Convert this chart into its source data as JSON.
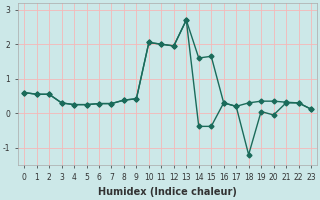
{
  "xlabel": "Humidex (Indice chaleur)",
  "background_color": "#cce8e8",
  "grid_color": "#f5b8b8",
  "line_color": "#1a6b5a",
  "x_line1": [
    0,
    1,
    2,
    3,
    4,
    5,
    6,
    7,
    8,
    9,
    10,
    11,
    12,
    13,
    14,
    15,
    16,
    17,
    18,
    19,
    20,
    21,
    22,
    23
  ],
  "y_line1": [
    0.6,
    0.55,
    0.55,
    0.3,
    0.25,
    0.25,
    0.28,
    0.28,
    0.38,
    0.42,
    2.05,
    2.0,
    1.95,
    2.7,
    1.6,
    1.65,
    0.3,
    0.2,
    0.3,
    0.35,
    0.35,
    0.32,
    0.3,
    0.12
  ],
  "x_line2": [
    0,
    1,
    2,
    3,
    4,
    5,
    6,
    7,
    8,
    9,
    10,
    11,
    12,
    13,
    14,
    15,
    16,
    17,
    18,
    19,
    20,
    21,
    22,
    23
  ],
  "y_line2": [
    0.6,
    0.55,
    0.55,
    0.3,
    0.25,
    0.25,
    0.28,
    0.28,
    0.38,
    0.42,
    2.05,
    2.0,
    1.95,
    2.7,
    -0.38,
    -0.38,
    0.3,
    0.2,
    -1.2,
    0.05,
    -0.05,
    0.3,
    0.3,
    0.12
  ],
  "ylim": [
    -1.5,
    3.2
  ],
  "xlim": [
    -0.5,
    23.5
  ],
  "yticks": [
    -1,
    0,
    1,
    2,
    3
  ],
  "xticks": [
    0,
    1,
    2,
    3,
    4,
    5,
    6,
    7,
    8,
    9,
    10,
    11,
    12,
    13,
    14,
    15,
    16,
    17,
    18,
    19,
    20,
    21,
    22,
    23
  ],
  "marker": "D",
  "marker_size": 2.5,
  "line_width": 1.0,
  "xlabel_fontsize": 7,
  "tick_fontsize": 5.5
}
